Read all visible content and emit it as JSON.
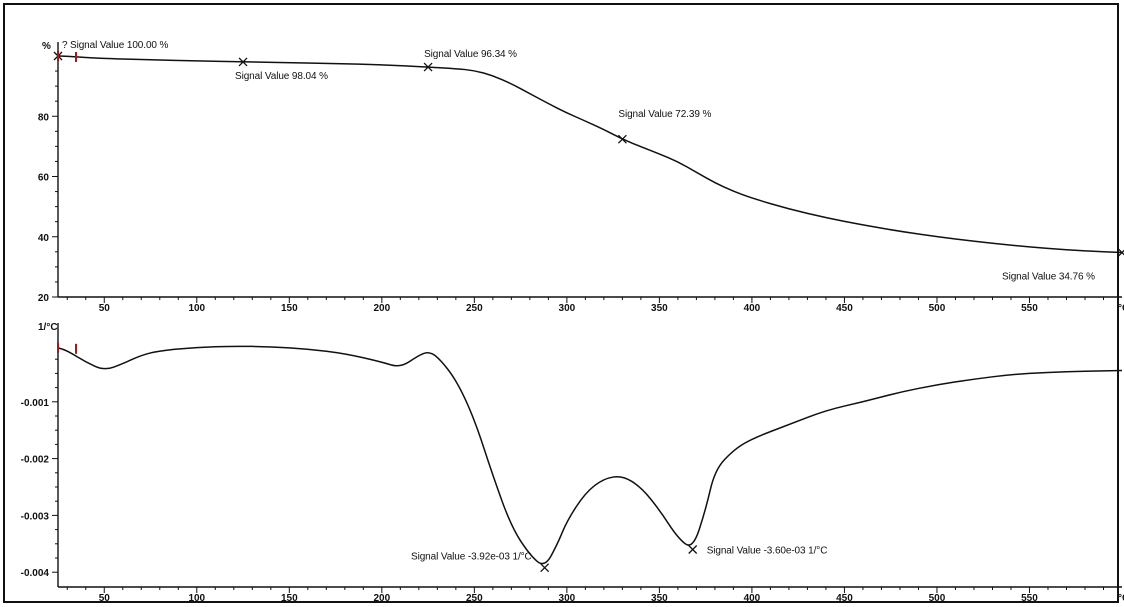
{
  "chart_data": [
    {
      "type": "line",
      "ylabel": "%",
      "xlabel": "°C",
      "xlim": [
        25,
        600
      ],
      "ylim": [
        20,
        100
      ],
      "x_ticks": [
        50,
        100,
        150,
        200,
        250,
        300,
        350,
        400,
        450,
        500,
        550
      ],
      "y_ticks": [
        20,
        40,
        60,
        80
      ],
      "x_unit_label": "°C",
      "y_unit_label": "%",
      "grid": false,
      "series": [
        {
          "x": [
            25,
            30,
            40,
            50,
            75,
            100,
            125,
            150,
            175,
            200,
            225,
            240,
            250,
            260,
            270,
            280,
            290,
            300,
            310,
            320,
            330,
            340,
            350,
            360,
            370,
            380,
            390,
            400,
            420,
            440,
            460,
            480,
            500,
            520,
            540,
            560,
            580,
            600
          ],
          "y": [
            100,
            99.9,
            99.5,
            99.2,
            98.7,
            98.4,
            98.04,
            97.8,
            97.5,
            97.1,
            96.34,
            95.8,
            95.2,
            93.5,
            90.8,
            87.5,
            84.2,
            81.1,
            78.4,
            75.6,
            72.39,
            69.9,
            67.5,
            64.9,
            61.4,
            57.9,
            55.1,
            52.8,
            49.2,
            46.3,
            43.9,
            41.8,
            40.0,
            38.5,
            37.2,
            36.1,
            35.3,
            34.76
          ]
        }
      ],
      "annotations": [
        {
          "x": 25,
          "y": 100,
          "label": "Signal Value   100.00 %",
          "prefix": "?"
        },
        {
          "x": 125,
          "y": 98.04,
          "label": "Signal Value   98.04 %"
        },
        {
          "x": 225,
          "y": 96.34,
          "label": "Signal Value   96.34 %"
        },
        {
          "x": 330,
          "y": 72.39,
          "label": "Signal Value   72.39 %"
        },
        {
          "x": 600,
          "y": 34.76,
          "label": "Signal Value   34.76 %"
        }
      ]
    },
    {
      "type": "line",
      "ylabel": "1/°C",
      "xlabel": "°C",
      "xlim": [
        25,
        600
      ],
      "ylim": [
        -0.0041,
        0.00015
      ],
      "x_ticks": [
        50,
        100,
        150,
        200,
        250,
        300,
        350,
        400,
        450,
        500,
        550
      ],
      "y_ticks": [
        "-0.001",
        "-0.002",
        "-0.003",
        "-0.004"
      ],
      "x_unit_label": "°C",
      "y_unit_label": "1/°C",
      "grid": false,
      "series": [
        {
          "x": [
            25,
            30,
            40,
            50,
            60,
            70,
            80,
            100,
            120,
            140,
            160,
            180,
            200,
            210,
            220,
            225,
            230,
            240,
            250,
            260,
            270,
            280,
            288,
            295,
            300,
            310,
            320,
            330,
            340,
            350,
            360,
            368,
            375,
            380,
            390,
            400,
            420,
            440,
            460,
            480,
            500,
            520,
            540,
            560,
            580,
            600
          ],
          "y": [
            -5e-05,
            -0.0001,
            -0.0003,
            -0.00045,
            -0.00033,
            -0.00018,
            -0.0001,
            -4e-05,
            -2e-05,
            -3e-05,
            -7e-05,
            -0.00015,
            -0.0003,
            -0.0004,
            -0.00018,
            -0.00012,
            -0.0002,
            -0.0006,
            -0.0013,
            -0.0023,
            -0.0032,
            -0.0037,
            -0.00392,
            -0.0035,
            -0.0031,
            -0.0026,
            -0.00235,
            -0.0023,
            -0.0025,
            -0.0029,
            -0.0034,
            -0.0036,
            -0.0029,
            -0.0022,
            -0.00185,
            -0.00165,
            -0.0014,
            -0.00115,
            -0.001,
            -0.00083,
            -0.0007,
            -0.0006,
            -0.00052,
            -0.00048,
            -0.00046,
            -0.00045
          ]
        }
      ],
      "annotations": [
        {
          "x": 288,
          "y": -0.00392,
          "label": "Signal Value   -3.92e-03 1/°C"
        },
        {
          "x": 368,
          "y": -0.0036,
          "label": "Signal Value   -3.60e-03 1/°C"
        }
      ]
    }
  ]
}
